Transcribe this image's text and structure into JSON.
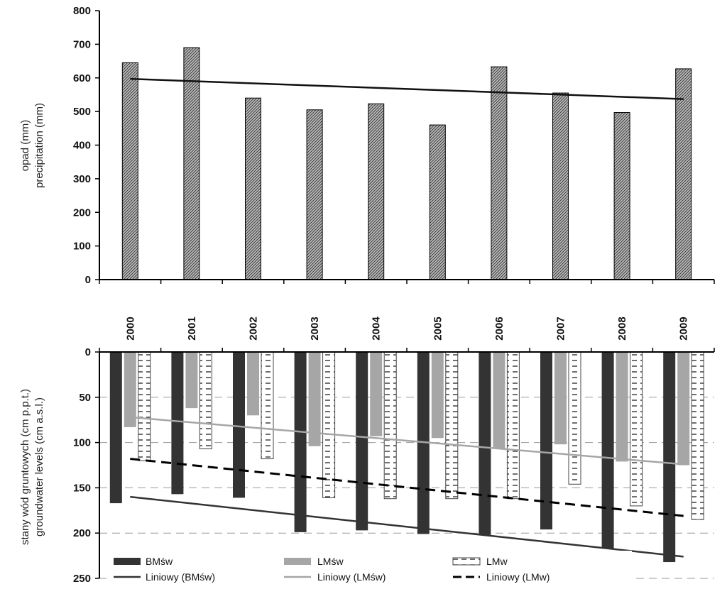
{
  "colors": {
    "precip_bar": "#8c8c8c",
    "bm": "#333333",
    "lms": "#a6a6a6",
    "lmw_stroke": "#444444",
    "trend_bm": "#333333",
    "trend_lms": "#a6a6a6",
    "trend_lmw": "#000000",
    "grid": "#999999"
  },
  "chart_data": [
    {
      "type": "bar",
      "title": "",
      "ylabel_lines": [
        "opad (mm)",
        "precipitation (mm)"
      ],
      "categories": [
        "2000",
        "2001",
        "2002",
        "2003",
        "2004",
        "2005",
        "2006",
        "2007",
        "2008",
        "2009"
      ],
      "series": [
        {
          "values": [
            645,
            690,
            540,
            505,
            523,
            460,
            633,
            555,
            497,
            627
          ]
        }
      ],
      "trendline": {
        "start": 597,
        "end": 537
      },
      "ylim": [
        0,
        800
      ],
      "yticks": [
        0,
        100,
        200,
        300,
        400,
        500,
        600,
        700,
        800
      ],
      "grid": false
    },
    {
      "type": "bar",
      "title": "",
      "ylabel_lines": [
        "stany wód gruntowych (cm p.p.t.)",
        "groundwater levels (cm a.s.l.)"
      ],
      "categories": [
        "2000",
        "2001",
        "2002",
        "2003",
        "2004",
        "2005",
        "2006",
        "2007",
        "2008",
        "2009"
      ],
      "y_inverted": true,
      "series": [
        {
          "name": "BMśw",
          "values": [
            167,
            157,
            161,
            199,
            197,
            201,
            202,
            196,
            217,
            232
          ]
        },
        {
          "name": "LMśw",
          "values": [
            83,
            62,
            70,
            104,
            93,
            95,
            107,
            102,
            121,
            125
          ]
        },
        {
          "name": "LMw",
          "values": [
            120,
            107,
            118,
            161,
            162,
            162,
            162,
            146,
            170,
            185
          ]
        }
      ],
      "trendlines": [
        {
          "name": "Liniowy (BMśw)",
          "series": "BMśw",
          "start": 160,
          "end": 226
        },
        {
          "name": "Liniowy (LMśw)",
          "series": "LMśw",
          "start": 72,
          "end": 124
        },
        {
          "name": "Liniowy (LMw)",
          "series": "LMw",
          "start": 118,
          "end": 181
        }
      ],
      "ylim": [
        0,
        250
      ],
      "yticks": [
        0,
        50,
        100,
        150,
        200,
        250
      ],
      "grid": true,
      "legend_position": "bottom"
    }
  ]
}
